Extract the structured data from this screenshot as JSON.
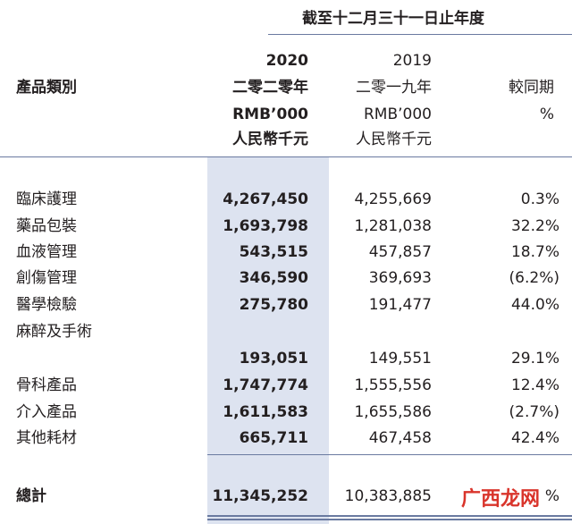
{
  "period_header": "截至十二月三十一日止年度",
  "headers": {
    "category": "產品類別",
    "y2020": [
      "2020",
      "二零二零年",
      "RMB’000",
      "人民幣千元"
    ],
    "y2019": [
      "2019",
      "二零一九年",
      "RMB’000",
      "人民幣千元"
    ],
    "change": [
      "較同期",
      "%"
    ]
  },
  "rows": [
    {
      "category": "臨床護理",
      "v2020": "4,267,450",
      "v2019": "4,255,669",
      "change": "0.3%"
    },
    {
      "category": "藥品包裝",
      "v2020": "1,693,798",
      "v2019": "1,281,038",
      "change": "32.2%"
    },
    {
      "category": "血液管理",
      "v2020": "543,515",
      "v2019": "457,857",
      "change": "18.7%"
    },
    {
      "category": "創傷管理",
      "v2020": "346,590",
      "v2019": "369,693",
      "change": "(6.2%)"
    },
    {
      "category": "醫學檢驗",
      "v2020": "275,780",
      "v2019": "191,477",
      "change": "44.0%"
    },
    {
      "category": "麻醉及手術",
      "v2020": "",
      "v2019": "",
      "change": ""
    },
    {
      "category": "",
      "v2020": "193,051",
      "v2019": "149,551",
      "change": "29.1%"
    },
    {
      "category": "骨科產品",
      "v2020": "1,747,774",
      "v2019": "1,555,556",
      "change": "12.4%"
    },
    {
      "category": "介入產品",
      "v2020": "1,611,583",
      "v2019": "1,655,586",
      "change": "(2.7%)"
    },
    {
      "category": "其他耗材",
      "v2020": "665,711",
      "v2019": "467,458",
      "change": "42.4%"
    }
  ],
  "total": {
    "category": "總計",
    "v2020": "11,345,252",
    "v2019": "10,383,885",
    "change": "%"
  },
  "watermark": "广西龙网"
}
